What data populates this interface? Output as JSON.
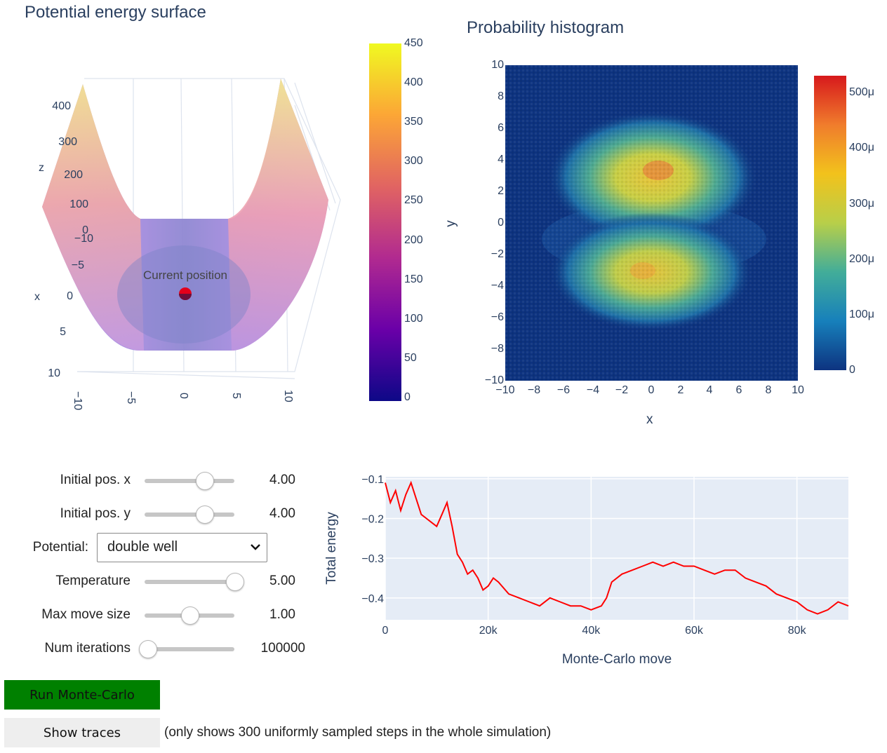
{
  "surface_panel": {
    "title": "Potential energy surface",
    "z_axis_label": "z",
    "x_axis_label": "x",
    "z_ticks": [
      "400",
      "300",
      "200",
      "100",
      "0"
    ],
    "x_depth_ticks": [
      "−10",
      "−5",
      "0",
      "5",
      "10"
    ],
    "y_base_ticks": [
      "−10",
      "−5",
      "0",
      "5",
      "10"
    ],
    "marker_label": "Current position",
    "colorbar_ticks": [
      "450",
      "400",
      "350",
      "300",
      "250",
      "200",
      "150",
      "100",
      "50",
      "0"
    ]
  },
  "histogram_panel": {
    "title": "Probability histogram",
    "x_label": "x",
    "y_label": "y",
    "x_ticks": [
      "−10",
      "−8",
      "−6",
      "−4",
      "−2",
      "0",
      "2",
      "4",
      "6",
      "8",
      "10"
    ],
    "y_ticks": [
      "10",
      "8",
      "6",
      "4",
      "2",
      "0",
      "−2",
      "−4",
      "−6",
      "−8",
      "−10"
    ],
    "colorbar_ticks": [
      "500μ",
      "400μ",
      "300μ",
      "200μ",
      "100μ",
      "0"
    ]
  },
  "controls": {
    "init_x": {
      "label": "Initial pos. x",
      "value": "4.00",
      "level": 0.7
    },
    "init_y": {
      "label": "Initial pos. y",
      "value": "4.00",
      "level": 0.7
    },
    "potential": {
      "label": "Potential:",
      "selected": "double well"
    },
    "temperature": {
      "label": "Temperature",
      "value": "5.00",
      "level": 1.0
    },
    "max_move": {
      "label": "Max move size",
      "value": "1.00",
      "level": 0.5
    },
    "num_iter": {
      "label": "Num iterations",
      "value": "100000",
      "level": 0.0
    }
  },
  "buttons": {
    "run_label": "Run Monte-Carlo",
    "traces_label": "Show traces",
    "traces_note": "(only shows 300 uniformly sampled steps in the whole simulation)"
  },
  "colors": {
    "run_button": "#008000",
    "traces_button": "#eeeeee",
    "energy_line": "#ff0000",
    "plot_bg": "#e5ecf6",
    "heatmap_bg": "#0d3380"
  },
  "chart_data": [
    {
      "type": "line",
      "title": "",
      "xlabel": "Monte-Carlo move",
      "ylabel": "Total energy",
      "x_ticks": [
        "0",
        "20k",
        "40k",
        "60k",
        "80k"
      ],
      "y_ticks": [
        "−0.1",
        "−0.2",
        "−0.3",
        "−0.4"
      ],
      "xlim": [
        0,
        90000
      ],
      "ylim": [
        -0.455,
        -0.095
      ],
      "series": [
        {
          "x": [
            0,
            1000,
            2000,
            3000,
            4000,
            5000,
            6000,
            7000,
            8000,
            9000,
            10000,
            11000,
            12000,
            13000,
            14000,
            15000,
            16000,
            17000,
            18000,
            19000,
            20000,
            21000,
            22000,
            24000,
            26000,
            28000,
            30000,
            32000,
            34000,
            36000,
            38000,
            40000,
            42000,
            43000,
            44000,
            46000,
            48000,
            50000,
            52000,
            54000,
            56000,
            58000,
            60000,
            62000,
            64000,
            66000,
            68000,
            70000,
            72000,
            74000,
            76000,
            78000,
            80000,
            82000,
            84000,
            86000,
            88000,
            90000
          ],
          "y": [
            -0.11,
            -0.16,
            -0.13,
            -0.18,
            -0.14,
            -0.11,
            -0.15,
            -0.19,
            -0.2,
            -0.21,
            -0.22,
            -0.19,
            -0.16,
            -0.22,
            -0.29,
            -0.31,
            -0.34,
            -0.33,
            -0.35,
            -0.38,
            -0.37,
            -0.35,
            -0.36,
            -0.39,
            -0.4,
            -0.41,
            -0.42,
            -0.4,
            -0.41,
            -0.42,
            -0.42,
            -0.43,
            -0.42,
            -0.4,
            -0.36,
            -0.34,
            -0.33,
            -0.32,
            -0.31,
            -0.32,
            -0.31,
            -0.32,
            -0.32,
            -0.33,
            -0.34,
            -0.33,
            -0.33,
            -0.35,
            -0.36,
            -0.37,
            -0.39,
            -0.4,
            -0.41,
            -0.43,
            -0.44,
            -0.43,
            -0.41,
            -0.42
          ]
        }
      ]
    }
  ]
}
